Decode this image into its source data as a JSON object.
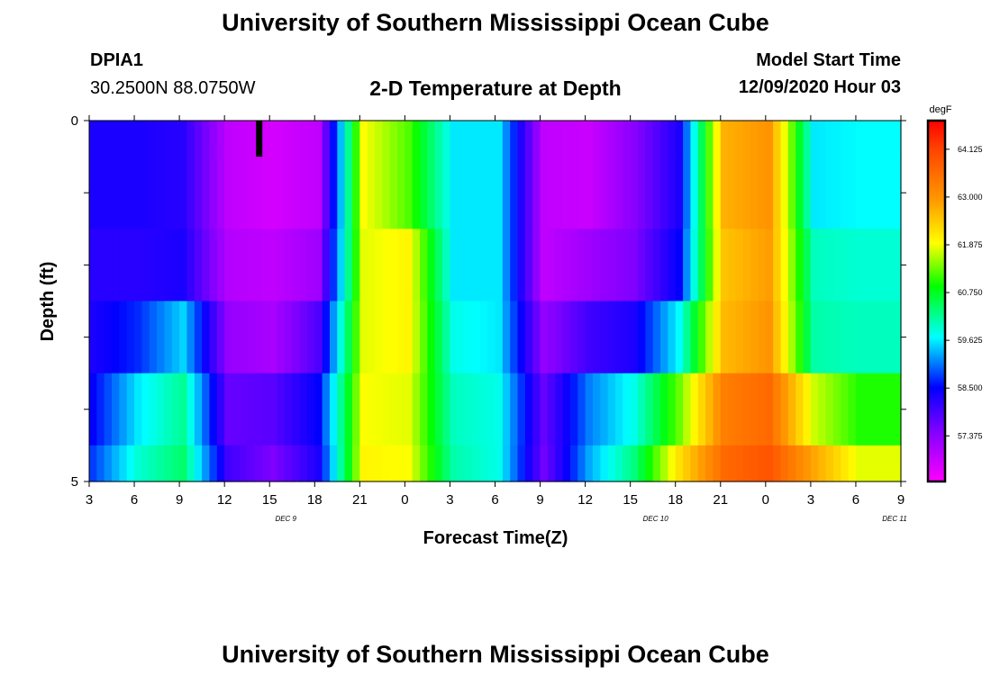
{
  "header": {
    "title_top": "University of Southern Mississippi Ocean Cube",
    "station": "DPIA1",
    "coords": "30.2500N 88.0750W",
    "plot_title": "2-D Temperature at Depth",
    "model_start_label": "Model Start Time",
    "model_start_value": "12/09/2020 Hour 03",
    "title_bottom": "University of Southern Mississippi Ocean Cube"
  },
  "chart_data": {
    "type": "heatmap",
    "title": "2-D Temperature at Depth",
    "xlabel": "Forecast Time(Z)",
    "ylabel": "Depth (ft)",
    "ylim": [
      0,
      5
    ],
    "y_tick_labels": [
      "0",
      "5"
    ],
    "x_tick_labels": [
      "3",
      "6",
      "9",
      "12",
      "15",
      "18",
      "21",
      "0",
      "3",
      "6",
      "9",
      "12",
      "15",
      "18",
      "21",
      "0",
      "3",
      "6",
      "9"
    ],
    "date_labels": [
      {
        "label": "DEC 9",
        "hour_index": 4
      },
      {
        "label": "DEC 10",
        "hour_index": 12.2
      },
      {
        "label": "DEC 11",
        "hour_index": 17.5
      }
    ],
    "depth_rows": 5,
    "time_points_per_row": 18,
    "hours": [
      3,
      6,
      9,
      12,
      15,
      18,
      21,
      0,
      3,
      6,
      9,
      12,
      15,
      18,
      21,
      0,
      3,
      6
    ],
    "values": [
      [
        58.3,
        58.3,
        58.2,
        56.9,
        56.7,
        56.9,
        61.9,
        61.2,
        59.6,
        59.6,
        56.9,
        56.8,
        57.4,
        58.3,
        62.7,
        63.0,
        59.6,
        59.7
      ],
      [
        58.2,
        58.2,
        58.3,
        57.0,
        56.9,
        57.2,
        61.8,
        62.0,
        59.6,
        59.6,
        56.9,
        57.2,
        57.5,
        58.5,
        62.5,
        62.9,
        60.0,
        59.9
      ],
      [
        58.3,
        58.7,
        59.5,
        57.3,
        57.1,
        57.9,
        61.8,
        62.0,
        59.8,
        59.6,
        57.3,
        58.0,
        58.3,
        59.7,
        62.6,
        63.0,
        60.1,
        60.0
      ],
      [
        58.5,
        59.6,
        60.2,
        57.7,
        57.8,
        58.5,
        61.9,
        61.8,
        60.0,
        59.8,
        57.7,
        59.1,
        59.8,
        61.3,
        63.3,
        63.6,
        61.7,
        61.0
      ],
      [
        58.8,
        59.9,
        60.4,
        58.0,
        57.5,
        58.3,
        62.0,
        61.9,
        60.1,
        59.8,
        57.6,
        59.3,
        60.3,
        62.2,
        63.6,
        63.9,
        62.8,
        61.8
      ]
    ],
    "colorbar": {
      "unit": "degF",
      "vmin": 56.3,
      "vmax": 64.8,
      "ticks": [
        "64.125",
        "63.000",
        "61.875",
        "60.750",
        "59.625",
        "58.500",
        "57.375"
      ]
    },
    "marker": {
      "hour_index": 3.7,
      "depth_from": 0,
      "depth_to": 0.5,
      "color": "#000000"
    }
  }
}
